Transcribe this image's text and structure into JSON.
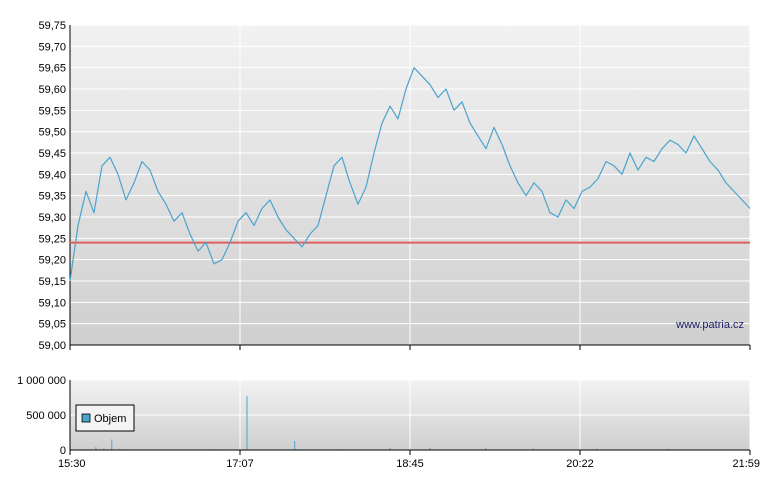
{
  "watermark": "www.patria.cz",
  "colors": {
    "price_line": "#4aa3cc",
    "reference_line": "#e06060",
    "volume_bar": "#4aa3cc",
    "grid": "#ffffff"
  },
  "chart_data": [
    {
      "type": "line",
      "title": "",
      "ylim": [
        59.0,
        59.75
      ],
      "y_ticks": [
        "59,75",
        "59,70",
        "59,65",
        "59,60",
        "59,55",
        "59,50",
        "59,45",
        "59,40",
        "59,35",
        "59,30",
        "59,25",
        "59,20",
        "59,15",
        "59,10",
        "59,05",
        "59,00"
      ],
      "x_ticks": [
        "15:30",
        "17:07",
        "18:45",
        "20:22",
        "21:59"
      ],
      "reference_line": 59.24,
      "series": [
        {
          "values": [
            59.15,
            59.28,
            59.36,
            59.31,
            59.42,
            59.44,
            59.4,
            59.34,
            59.38,
            59.43,
            59.41,
            59.36,
            59.33,
            59.29,
            59.31,
            59.26,
            59.22,
            59.24,
            59.19,
            59.2,
            59.24,
            59.29,
            59.31,
            59.28,
            59.32,
            59.34,
            59.3,
            59.27,
            59.25,
            59.23,
            59.26,
            59.28,
            59.35,
            59.42,
            59.44,
            59.38,
            59.33,
            59.37,
            59.45,
            59.52,
            59.56,
            59.53,
            59.6,
            59.65,
            59.63,
            59.61,
            59.58,
            59.6,
            59.55,
            59.57,
            59.52,
            59.49,
            59.46,
            59.51,
            59.47,
            59.42,
            59.38,
            59.35,
            59.38,
            59.36,
            59.31,
            59.3,
            59.34,
            59.32,
            59.36,
            59.37,
            59.39,
            59.43,
            59.42,
            59.4,
            59.45,
            59.41,
            59.44,
            59.43,
            59.46,
            59.48,
            59.47,
            59.45,
            59.49,
            59.46,
            59.43,
            59.41,
            59.38,
            59.36,
            59.34,
            59.32
          ]
        }
      ]
    },
    {
      "type": "bar",
      "title": "",
      "ylim": [
        0,
        1000000
      ],
      "y_ticks": [
        "1 000 000",
        "500 000",
        "0"
      ],
      "legend": "Objem",
      "legend_position": "left",
      "x_ticks": [
        "15:30",
        "17:07",
        "18:45",
        "20:22",
        "21:59"
      ],
      "values": [
        5000,
        8000,
        12000,
        40000,
        20000,
        150000,
        15000,
        10000,
        8000,
        6000,
        9000,
        5000,
        7000,
        6000,
        4000,
        8000,
        6000,
        5000,
        12000,
        10000,
        8000,
        6000,
        770000,
        9000,
        7000,
        5000,
        8000,
        6000,
        130000,
        10000,
        9000,
        8000,
        6000,
        7000,
        12000,
        9000,
        6000,
        7000,
        5000,
        8000,
        35000,
        6000,
        9000,
        7000,
        5000,
        30000,
        6000,
        8000,
        6000,
        9000,
        5000,
        7000,
        25000,
        6000,
        8000,
        5000,
        6000,
        4000,
        20000,
        5000,
        6000,
        5000,
        7000,
        4000,
        5000,
        6000,
        18000,
        5000,
        4000,
        6000,
        5000,
        7000,
        4000,
        6000,
        5000,
        15000,
        6000,
        4000,
        5000,
        6000,
        7000,
        5000,
        6000,
        4000,
        6000,
        5000
      ]
    }
  ]
}
